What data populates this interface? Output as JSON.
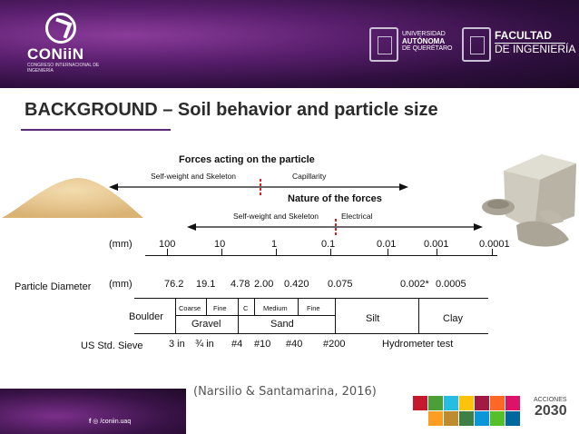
{
  "header": {
    "logo_word": "CONiiN",
    "logo_sub": "CONGRESO INTERNACIONAL DE INGENIERÍA",
    "university": [
      "UNIVERSIDAD",
      "AUTÓNOMA",
      "DE QUERÉTARO"
    ],
    "faculty": [
      "FACULTAD",
      "DE INGENIERÍA"
    ]
  },
  "title": "BACKGROUND – Soil behavior and particle size",
  "forces": {
    "heading": "Forces acting on the particle",
    "left_label": "Self-weight and Skeleton",
    "right_label": "Capillarity"
  },
  "nature": {
    "heading": "Nature of the forces",
    "left_label": "Self-weight and Skeleton",
    "right_label": "Electrical"
  },
  "scale": {
    "unit": "(mm)",
    "ticks": [
      "100",
      "10",
      "1",
      "0.1",
      "0.01",
      "0.001",
      "0.0001"
    ]
  },
  "particle_diameter": {
    "label": "Particle Diameter",
    "unit": "(mm)",
    "values": [
      "76.2",
      "19.1",
      "4.78",
      "2.00",
      "0.420",
      "0.075",
      "0.002*",
      "0.0005"
    ]
  },
  "classification": {
    "boulder": "Boulder",
    "gravel": "Gravel",
    "gravel_sub": [
      "Coarse",
      "Fine"
    ],
    "sand": "Sand",
    "sand_sub": [
      "C",
      "Medium",
      "Fine"
    ],
    "silt": "Silt",
    "clay": "Clay"
  },
  "sieve": {
    "label": "US Std. Sieve",
    "values": [
      "3 in",
      "¾ in",
      "#4",
      "#10",
      "#40",
      "#200",
      "Hydrometer test"
    ]
  },
  "footer": {
    "social": "/coniin.uaq",
    "citation": "(Narsilio & Santamarina, 2016)",
    "acciones": "ACCIONES",
    "year": "2030"
  },
  "colors": {
    "header_purple": "#5a1f6e",
    "dashed_red": "#e02020",
    "sdg": [
      "#c5192d",
      "#4c9f38",
      "#26bde2",
      "#fcc30b",
      "#a21942",
      "#fd6925",
      "#dd1367",
      "#fd9d24",
      "#bf8b2e",
      "#3f7e44",
      "#0a97d9",
      "#56c02b",
      "#00689d",
      "#19486a",
      "#e5243b",
      "#dda63a",
      "#ff3a21"
    ]
  }
}
